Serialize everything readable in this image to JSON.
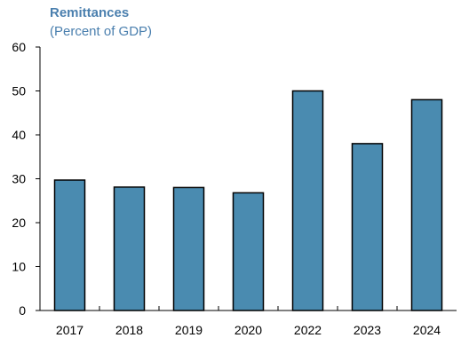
{
  "colors": {
    "bar_fill": "#4a8bb0",
    "bar_stroke": "#000000",
    "axis": "#000000",
    "title": "#4a7fae"
  },
  "chart_data": {
    "type": "bar",
    "title": "Remittances",
    "subtitle": "(Percent of GDP)",
    "xlabel": "",
    "ylabel": "",
    "categories": [
      "2017",
      "2018",
      "2019",
      "2020",
      "2022",
      "2023",
      "2024"
    ],
    "values": [
      29.7,
      28.1,
      28.0,
      26.8,
      50.0,
      38.0,
      48.0
    ],
    "ylim": [
      0,
      60
    ],
    "yticks": [
      0,
      10,
      20,
      30,
      40,
      50,
      60
    ],
    "grid": false,
    "legend": "none"
  }
}
